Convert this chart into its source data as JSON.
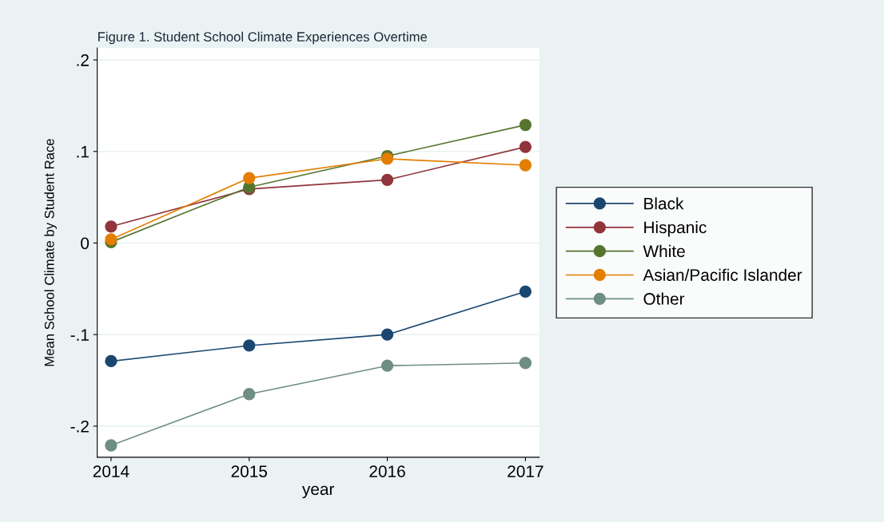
{
  "chart_data": {
    "type": "line",
    "title": "Figure 1. Student School Climate Experiences Overtime",
    "xlabel": "year",
    "ylabel": "Mean School Climate by Student Race",
    "x": [
      2014,
      2015,
      2016,
      2017
    ],
    "series": [
      {
        "name": "Black",
        "color": "#1a476f",
        "values": [
          -0.129,
          -0.112,
          -0.1,
          -0.053
        ]
      },
      {
        "name": "Hispanic",
        "color": "#90353b",
        "values": [
          0.018,
          0.059,
          0.069,
          0.105
        ]
      },
      {
        "name": "White",
        "color": "#55752f",
        "values": [
          0.001,
          0.061,
          0.095,
          0.129
        ]
      },
      {
        "name": "Asian/Pacific Islander",
        "color": "#e37e00",
        "values": [
          0.004,
          0.071,
          0.092,
          0.085
        ]
      },
      {
        "name": "Other",
        "color": "#6e8e84",
        "values": [
          -0.221,
          -0.165,
          -0.134,
          -0.131
        ]
      }
    ],
    "xlim": [
      2013.9,
      2017.1
    ],
    "xticks": [
      2014,
      2015,
      2016,
      2017
    ],
    "ylim": [
      -0.234,
      0.213
    ],
    "yticks": [
      {
        "value": -0.2,
        "label": "-.2"
      },
      {
        "value": -0.1,
        "label": "-.1"
      },
      {
        "value": 0,
        "label": "0"
      },
      {
        "value": 0.1,
        "label": ".1"
      },
      {
        "value": 0.2,
        "label": ".2"
      }
    ],
    "grid": "y",
    "legend": "right",
    "marker": "circle",
    "line_style": "solid"
  }
}
